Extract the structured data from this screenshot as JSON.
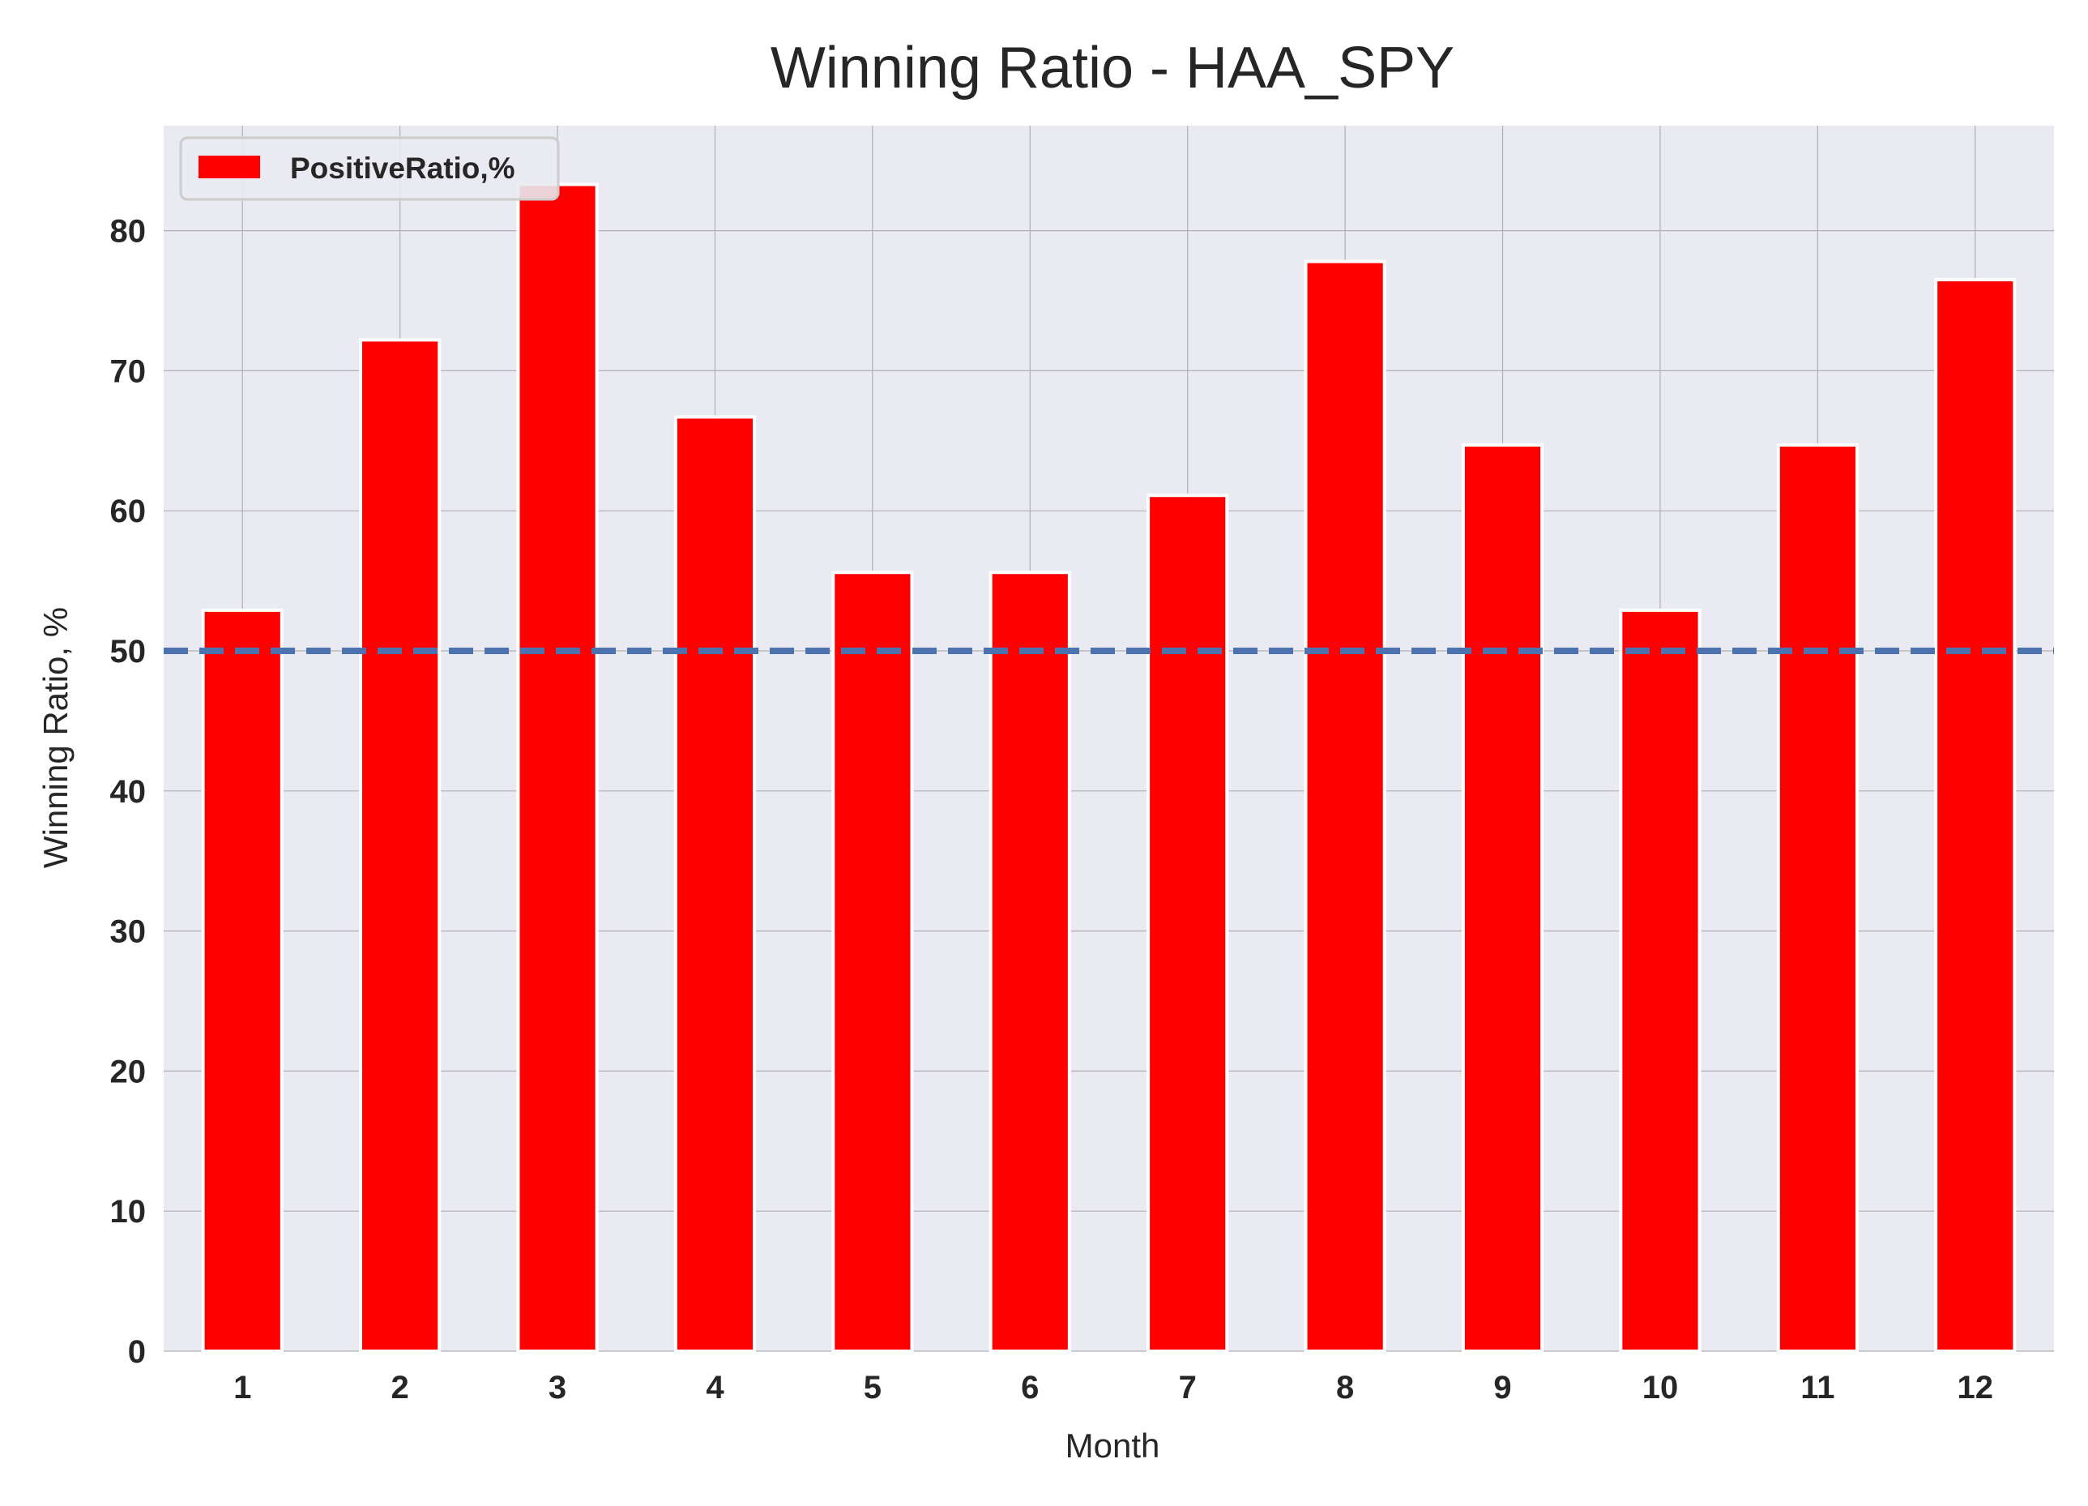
{
  "chart_data": {
    "type": "bar",
    "title": "Winning Ratio - HAA_SPY",
    "xlabel": "Month",
    "ylabel": "Winning Ratio, %",
    "categories": [
      "1",
      "2",
      "3",
      "4",
      "5",
      "6",
      "7",
      "8",
      "9",
      "10",
      "11",
      "12"
    ],
    "series": [
      {
        "name": "PositiveRatio,%",
        "values": [
          52.9,
          72.2,
          83.3,
          66.7,
          55.6,
          55.6,
          61.1,
          77.8,
          64.7,
          52.9,
          64.7,
          76.5
        ],
        "color": "#ff0000"
      }
    ],
    "reference_line": {
      "value": 50,
      "style": "dashed",
      "color": "#4c72b0"
    },
    "yticks": [
      "0",
      "10",
      "20",
      "30",
      "40",
      "50",
      "60",
      "70",
      "80"
    ],
    "ylim": [
      0,
      87.5
    ],
    "grid": true,
    "legend_position": "upper-left",
    "colors": {
      "plot_background": "#eaeaf2",
      "grid": "#b0b0b0",
      "bar": "#ff0000",
      "bar_edge": "#ffffff",
      "reference_line": "#4c72b0"
    }
  }
}
